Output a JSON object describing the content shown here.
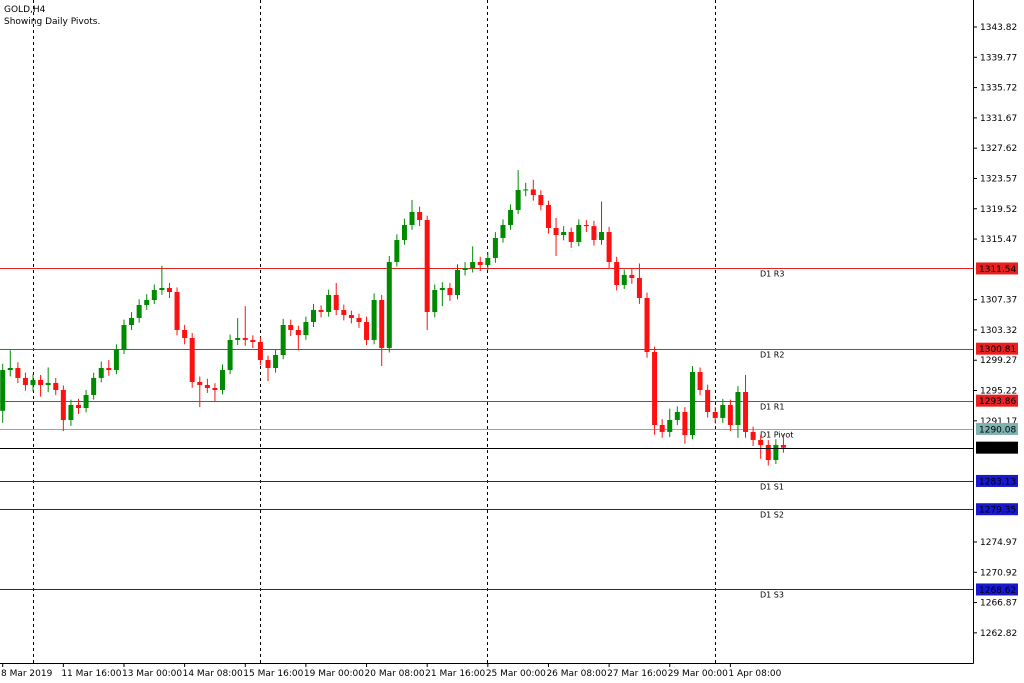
{
  "chart_data": {
    "type": "candlestick",
    "title": "GOLD,H4",
    "subtitle": "Showing Daily Pivots.",
    "categories": [
      "8 Mar 2019",
      null,
      null,
      null,
      null,
      null,
      null,
      null,
      "11 Mar 16:00",
      null,
      null,
      null,
      null,
      null,
      null,
      null,
      "13 Mar 00:00",
      null,
      null,
      null,
      null,
      null,
      null,
      null,
      "14 Mar 08:00",
      null,
      null,
      null,
      null,
      null,
      null,
      null,
      "15 Mar 16:00",
      null,
      null,
      null,
      null,
      null,
      null,
      null,
      "19 Mar 00:00",
      null,
      null,
      null,
      null,
      null,
      null,
      null,
      "20 Mar 08:00",
      null,
      null,
      null,
      null,
      null,
      null,
      null,
      "21 Mar 16:00",
      null,
      null,
      null,
      null,
      null,
      null,
      null,
      "25 Mar 00:00",
      null,
      null,
      null,
      null,
      null,
      null,
      null,
      "26 Mar 08:00",
      null,
      null,
      null,
      null,
      null,
      null,
      null,
      "27 Mar 16:00",
      null,
      null,
      null,
      null,
      null,
      null,
      null,
      "29 Mar 00:00",
      null,
      null,
      null,
      null,
      null,
      null,
      null,
      "1 Apr 08:00",
      null,
      null,
      null,
      null,
      null,
      null,
      null
    ],
    "open": [
      1292.5,
      1297.96,
      1298.23,
      1296.9,
      1295.96,
      1296.63,
      1295.96,
      1296.23,
      1295.29,
      1291.28,
      1293.29,
      1292.88,
      1294.62,
      1296.9,
      1298.23,
      1297.96,
      1300.64,
      1303.98,
      1304.92,
      1306.65,
      1307.32,
      1308.66,
      1308.93,
      1308.39,
      1303.31,
      1302.24,
      1296.36,
      1295.96,
      1295.56,
      1295.29,
      1297.96,
      1301.98,
      1302.24,
      1301.98,
      1301.71,
      1299.3,
      1298.23,
      1299.97,
      1303.98,
      1303.31,
      1302.64,
      1304.38,
      1305.99,
      1305.72,
      1307.99,
      1305.99,
      1305.32,
      1304.92,
      1304.38,
      1301.98,
      1307.32,
      1300.91,
      1312.4,
      1315.34,
      1317.35,
      1319.09,
      1318.02,
      1305.72,
      1308.66,
      1308.93,
      1307.99,
      1311.33,
      1311.6,
      1312.4,
      1312.0,
      1312.94,
      1315.61,
      1317.35,
      1319.36,
      1322.03,
      1322.1,
      1321.36,
      1320.02,
      1316.95,
      1316.01,
      1316.41,
      1315.08,
      1317.35,
      1317.2,
      1315.34,
      1316.41,
      1312.4,
      1309.33,
      1310.67,
      1310.26,
      1307.59,
      1300.37,
      1290.61,
      1289.68,
      1291.28,
      1292.35,
      1289.27,
      1297.7,
      1295.29,
      1292.35,
      1291.55,
      1293.29,
      1290.61,
      1295.02,
      1289.68,
      1288.61,
      1287.94,
      1285.93,
      1287.94
    ],
    "high": [
      1298.8,
      1300.6,
      1299.0,
      1297.6,
      1297.4,
      1297.3,
      1298.3,
      1296.9,
      1295.9,
      1294.0,
      1294.1,
      1295.3,
      1297.6,
      1299.1,
      1299.3,
      1301.4,
      1304.7,
      1305.7,
      1307.4,
      1308.1,
      1309.4,
      1311.9,
      1309.6,
      1309.0,
      1304.0,
      1302.9,
      1297.1,
      1296.8,
      1296.2,
      1298.7,
      1302.7,
      1304.9,
      1306.5,
      1302.6,
      1302.4,
      1299.9,
      1300.7,
      1304.8,
      1304.7,
      1303.9,
      1305.1,
      1306.8,
      1306.6,
      1308.7,
      1309.6,
      1306.7,
      1305.9,
      1305.5,
      1305.1,
      1308.2,
      1308.0,
      1313.2,
      1316.1,
      1318.2,
      1320.7,
      1319.8,
      1318.6,
      1309.4,
      1309.7,
      1309.6,
      1312.1,
      1312.4,
      1314.5,
      1313.1,
      1313.7,
      1316.4,
      1318.1,
      1320.1,
      1324.7,
      1323.0,
      1323.4,
      1322.0,
      1320.6,
      1318.3,
      1317.2,
      1317.0,
      1318.1,
      1318.0,
      1317.9,
      1320.5,
      1317.1,
      1313.1,
      1311.4,
      1311.6,
      1312.2,
      1308.3,
      1301.1,
      1291.4,
      1292.8,
      1293.1,
      1293.0,
      1298.5,
      1298.3,
      1296.0,
      1293.0,
      1294.1,
      1294.0,
      1295.8,
      1297.3,
      1290.4,
      1289.3,
      1288.6,
      1288.7,
      1289.4
    ],
    "low": [
      1290.9,
      1297.1,
      1296.2,
      1295.2,
      1295.1,
      1294.4,
      1295.0,
      1294.6,
      1289.8,
      1290.5,
      1292.1,
      1292.3,
      1294.0,
      1296.3,
      1297.2,
      1297.4,
      1300.1,
      1303.3,
      1304.3,
      1306.0,
      1306.8,
      1308.0,
      1307.6,
      1302.6,
      1301.4,
      1295.6,
      1293.0,
      1294.9,
      1293.8,
      1294.7,
      1297.4,
      1301.3,
      1301.2,
      1300.9,
      1298.6,
      1296.5,
      1297.6,
      1299.4,
      1302.5,
      1300.6,
      1302.0,
      1303.7,
      1305.0,
      1305.1,
      1305.3,
      1304.6,
      1304.2,
      1303.6,
      1301.3,
      1301.4,
      1298.5,
      1300.3,
      1311.8,
      1314.7,
      1316.7,
      1317.2,
      1303.3,
      1305.0,
      1306.5,
      1307.2,
      1307.4,
      1310.6,
      1311.0,
      1311.2,
      1311.3,
      1312.3,
      1315.0,
      1316.7,
      1318.8,
      1321.2,
      1320.6,
      1319.3,
      1316.2,
      1313.2,
      1315.3,
      1314.3,
      1314.5,
      1316.4,
      1314.6,
      1314.7,
      1311.6,
      1308.6,
      1308.8,
      1309.5,
      1306.8,
      1299.6,
      1289.3,
      1288.9,
      1289.0,
      1290.6,
      1288.1,
      1288.7,
      1294.6,
      1291.6,
      1290.8,
      1290.9,
      1289.8,
      1288.9,
      1288.9,
      1287.8,
      1286.1,
      1285.2,
      1285.4,
      1286.9
    ],
    "close": [
      1297.96,
      1298.23,
      1296.9,
      1295.96,
      1296.63,
      1295.96,
      1296.23,
      1295.29,
      1291.28,
      1293.29,
      1292.88,
      1294.62,
      1296.9,
      1298.23,
      1297.96,
      1300.64,
      1303.98,
      1304.92,
      1306.65,
      1307.32,
      1308.66,
      1308.93,
      1308.39,
      1303.31,
      1302.24,
      1296.36,
      1295.96,
      1295.56,
      1295.29,
      1297.96,
      1301.98,
      1302.24,
      1301.98,
      1301.71,
      1299.3,
      1298.23,
      1299.97,
      1303.98,
      1303.31,
      1302.64,
      1304.38,
      1305.99,
      1305.72,
      1307.99,
      1305.99,
      1305.32,
      1304.92,
      1304.38,
      1301.98,
      1307.32,
      1300.91,
      1312.4,
      1315.34,
      1317.35,
      1319.09,
      1318.02,
      1305.72,
      1308.66,
      1308.93,
      1307.99,
      1311.33,
      1311.6,
      1312.4,
      1312.0,
      1312.94,
      1315.61,
      1317.35,
      1319.36,
      1322.03,
      1322.1,
      1321.36,
      1320.02,
      1316.95,
      1316.01,
      1316.41,
      1315.08,
      1317.35,
      1317.2,
      1315.34,
      1316.41,
      1312.4,
      1309.33,
      1310.67,
      1310.26,
      1307.59,
      1300.37,
      1290.61,
      1289.68,
      1291.28,
      1292.35,
      1289.27,
      1297.7,
      1295.29,
      1292.35,
      1291.55,
      1293.29,
      1290.61,
      1295.02,
      1289.68,
      1288.61,
      1287.94,
      1285.93,
      1287.94,
      1287.58
    ],
    "up_color": "#008a00",
    "down_color": "#ff1010",
    "ylim": [
      1258.79,
      1347.43
    ],
    "yticks": [
      1343.82,
      1339.77,
      1335.72,
      1331.67,
      1327.62,
      1323.57,
      1319.52,
      1315.47,
      1307.37,
      1303.32,
      1299.27,
      1295.22,
      1291.17,
      1274.97,
      1270.92,
      1266.87,
      1262.82
    ],
    "levels": [
      {
        "name": "D1 R3",
        "value": 1311.54,
        "color": "#e82020"
      },
      {
        "name": "D1 R2",
        "value": 1300.81,
        "color": "#e82020"
      },
      {
        "name": "D1 R1",
        "value": 1293.86,
        "color": "#e82020"
      },
      {
        "name": "D1 Pivot",
        "value": 1290.08,
        "color": "#7fb2b2"
      },
      {
        "name": "D1 S1",
        "value": 1283.13,
        "color": "#1818d0"
      },
      {
        "name": "D1 S2",
        "value": 1279.35,
        "color": "#1818d0"
      },
      {
        "name": "D1 S3",
        "value": 1268.62,
        "color": "#1818d0"
      }
    ],
    "current_price": 1287.58,
    "current_price_color": "#000000"
  }
}
